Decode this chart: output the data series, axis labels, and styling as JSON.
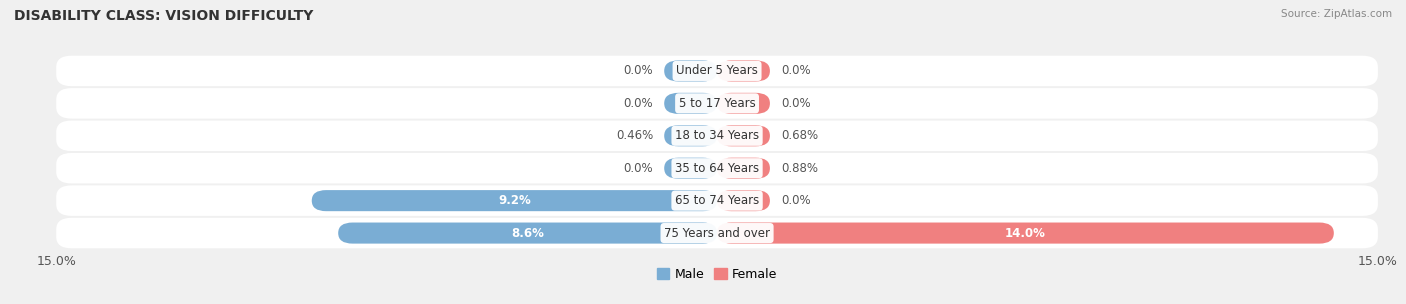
{
  "title": "DISABILITY CLASS: VISION DIFFICULTY",
  "source": "Source: ZipAtlas.com",
  "categories": [
    "Under 5 Years",
    "5 to 17 Years",
    "18 to 34 Years",
    "35 to 64 Years",
    "65 to 74 Years",
    "75 Years and over"
  ],
  "male_values": [
    0.0,
    0.0,
    0.46,
    0.0,
    9.2,
    8.6
  ],
  "female_values": [
    0.0,
    0.0,
    0.68,
    0.88,
    0.0,
    14.0
  ],
  "male_labels": [
    "0.0%",
    "0.0%",
    "0.46%",
    "0.0%",
    "9.2%",
    "8.6%"
  ],
  "female_labels": [
    "0.0%",
    "0.0%",
    "0.68%",
    "0.88%",
    "0.0%",
    "14.0%"
  ],
  "max_val": 15.0,
  "min_bar_display": 1.2,
  "male_color": "#7aadd4",
  "female_color": "#f08080",
  "bg_color": "#f0f0f0",
  "row_bg_color": "#ffffff",
  "title_fontsize": 10,
  "label_fontsize": 8.5,
  "axis_label_fontsize": 9,
  "legend_fontsize": 9,
  "label_color_outside": "#555555",
  "label_color_inside": "#ffffff"
}
